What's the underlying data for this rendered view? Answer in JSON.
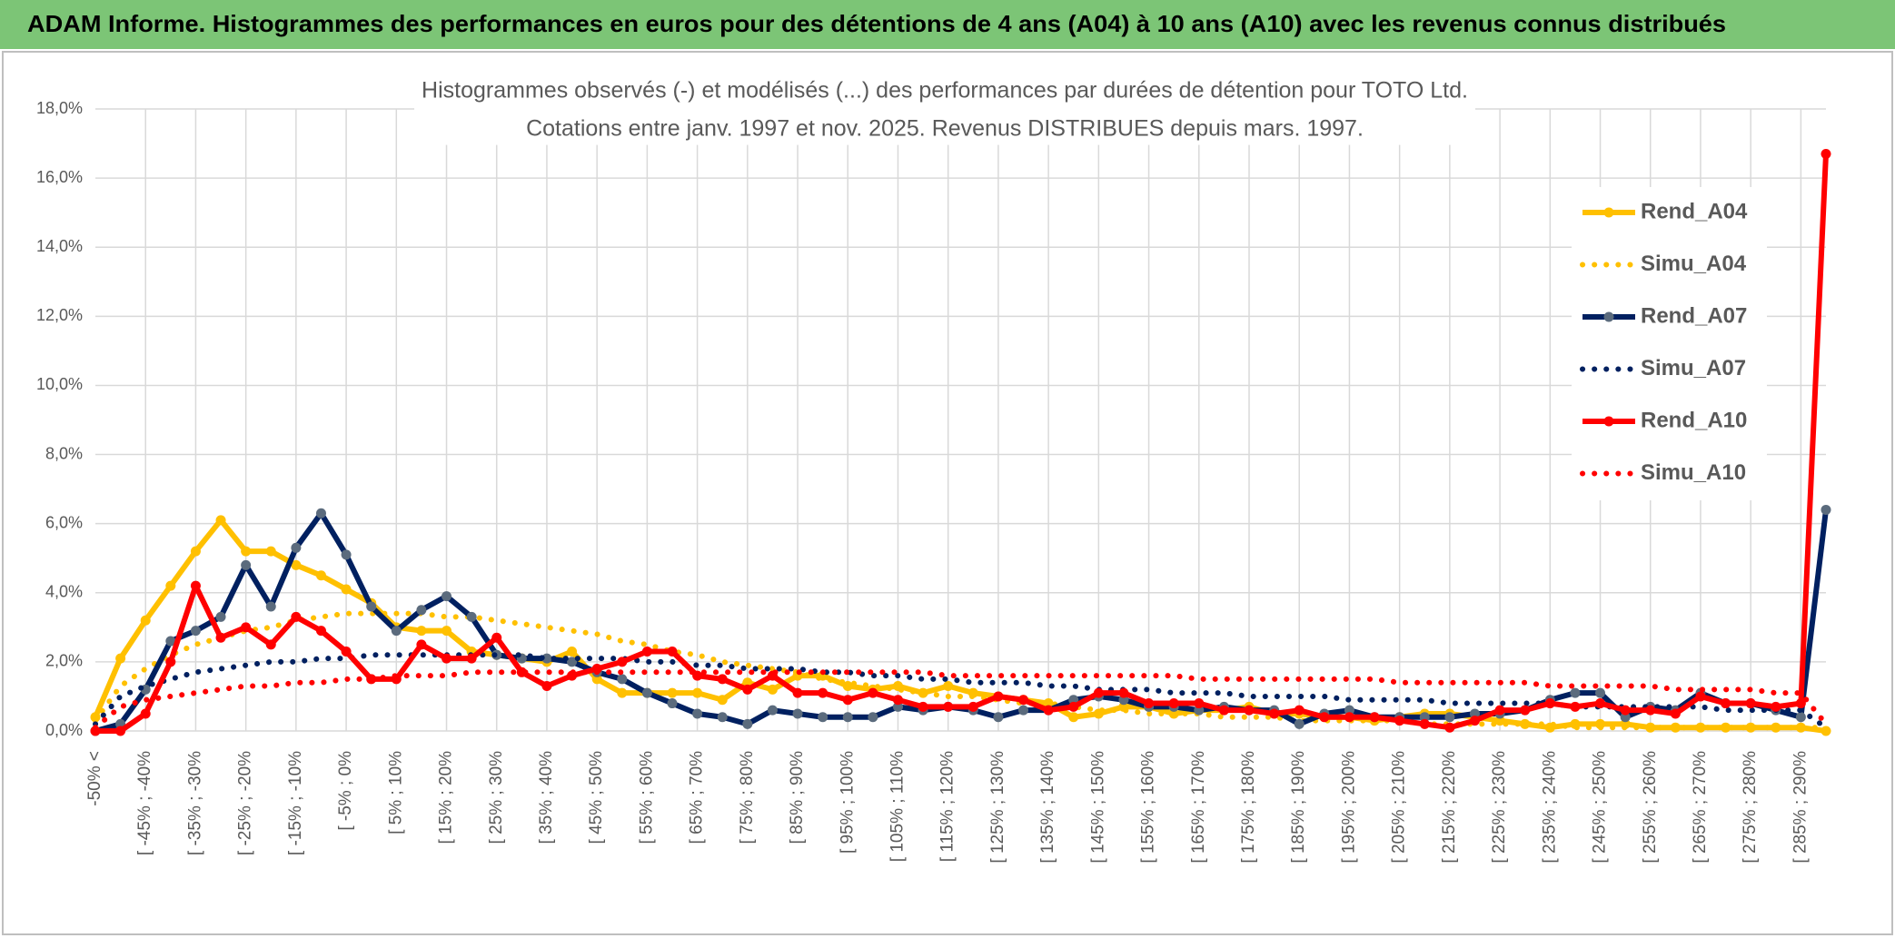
{
  "header": {
    "title": "ADAM Informe. Histogrammes des performances en euros pour des détentions de 4 ans (A04) à 10 ans (A10) avec les revenus connus distribués"
  },
  "chart_data": {
    "type": "line",
    "title": "Histogrammes observés (-) et modélisés (...) des performances par durées de détention pour TOTO Ltd.",
    "subtitle": "Cotations entre janv. 1997 et nov. 2025. Revenus DISTRIBUES depuis mars. 1997.",
    "categories": [
      "-50% <",
      null,
      "[ -45% ; -40%",
      null,
      "[ -35% ; -30%",
      null,
      "[ -25% ; -20%",
      null,
      "[ -15% ; -10%",
      null,
      "[ -5% ; 0%",
      null,
      "[ 5% ; 10%",
      null,
      "[ 15% ; 20%",
      null,
      "[ 25% ; 30%",
      null,
      "[ 35% ; 40%",
      null,
      "[ 45% ; 50%",
      null,
      "[ 55% ; 60%",
      null,
      "[ 65% ; 70%",
      null,
      "[ 75% ; 80%",
      null,
      "[ 85% ; 90%",
      null,
      "[ 95% ; 100%",
      null,
      "[ 105% ; 110%",
      null,
      "[ 115% ; 120%",
      null,
      "[ 125% ; 130%",
      null,
      "[ 135% ; 140%",
      null,
      "[ 145% ; 150%",
      null,
      "[ 155% ; 160%",
      null,
      "[ 165% ; 170%",
      null,
      "[ 175% ; 180%",
      null,
      "[ 185% ; 190%",
      null,
      "[ 195% ; 200%",
      null,
      "[ 205% ; 210%",
      null,
      "[ 215% ; 220%",
      null,
      "[ 225% ; 230%",
      null,
      "[ 235% ; 240%",
      null,
      "[ 245% ; 250%",
      null,
      "[ 255% ; 260%",
      null,
      "[ 265% ; 270%",
      null,
      "[ 275% ; 280%",
      null,
      "[ 285% ; 290%",
      null
    ],
    "series": [
      {
        "name": "Rend_A04",
        "color": "#ffc000",
        "dash": "solid",
        "marker": true,
        "values": [
          0.4,
          2.1,
          3.2,
          4.2,
          5.2,
          6.1,
          5.2,
          5.2,
          4.8,
          4.5,
          4.1,
          3.7,
          3.0,
          2.9,
          2.9,
          2.3,
          2.2,
          2.1,
          2.0,
          2.3,
          1.5,
          1.1,
          1.1,
          1.1,
          1.1,
          0.9,
          1.4,
          1.2,
          1.6,
          1.6,
          1.3,
          1.2,
          1.3,
          1.1,
          1.3,
          1.1,
          1.0,
          0.9,
          0.8,
          0.4,
          0.5,
          0.7,
          0.7,
          0.5,
          0.6,
          0.6,
          0.7,
          0.5,
          0.5,
          0.4,
          0.4,
          0.3,
          0.4,
          0.5,
          0.5,
          0.4,
          0.3,
          0.2,
          0.1,
          0.2,
          0.2,
          0.2,
          0.1,
          0.1,
          0.1,
          0.1,
          0.1,
          0.1,
          0.1,
          0.0
        ]
      },
      {
        "name": "Simu_A04",
        "color": "#ffc000",
        "dash": "dotted",
        "marker": false,
        "values": [
          0.3,
          1.3,
          1.8,
          2.2,
          2.5,
          2.7,
          2.9,
          3.0,
          3.2,
          3.3,
          3.4,
          3.4,
          3.4,
          3.4,
          3.3,
          3.3,
          3.2,
          3.1,
          3.0,
          2.9,
          2.8,
          2.6,
          2.5,
          2.3,
          2.2,
          2.0,
          1.9,
          1.8,
          1.7,
          1.5,
          1.4,
          1.3,
          1.2,
          1.1,
          1.0,
          1.0,
          0.9,
          0.8,
          0.8,
          0.7,
          0.6,
          0.6,
          0.5,
          0.5,
          0.5,
          0.4,
          0.4,
          0.4,
          0.3,
          0.3,
          0.3,
          0.3,
          0.3,
          0.2,
          0.2,
          0.2,
          0.2,
          0.2,
          0.2,
          0.1,
          0.1,
          0.1,
          0.1,
          0.1,
          0.1,
          0.1,
          0.1,
          0.1,
          0.1,
          0.1
        ]
      },
      {
        "name": "Rend_A07",
        "color": "#002060",
        "marker_color": "#5b6b7d",
        "dash": "solid",
        "marker": true,
        "values": [
          0.0,
          0.2,
          1.2,
          2.6,
          2.9,
          3.3,
          4.8,
          3.6,
          5.3,
          6.3,
          5.1,
          3.6,
          2.9,
          3.5,
          3.9,
          3.3,
          2.2,
          2.1,
          2.1,
          2.0,
          1.7,
          1.5,
          1.1,
          0.8,
          0.5,
          0.4,
          0.2,
          0.6,
          0.5,
          0.4,
          0.4,
          0.4,
          0.7,
          0.6,
          0.7,
          0.6,
          0.4,
          0.6,
          0.6,
          0.9,
          1.0,
          0.9,
          0.7,
          0.7,
          0.6,
          0.7,
          0.6,
          0.6,
          0.2,
          0.5,
          0.6,
          0.4,
          0.4,
          0.4,
          0.4,
          0.5,
          0.5,
          0.6,
          0.9,
          1.1,
          1.1,
          0.4,
          0.7,
          0.6,
          1.1,
          0.8,
          0.8,
          0.6,
          0.4,
          6.4
        ]
      },
      {
        "name": "Simu_A07",
        "color": "#002060",
        "dash": "dotted",
        "marker": false,
        "values": [
          0.2,
          1.0,
          1.3,
          1.5,
          1.7,
          1.8,
          1.9,
          2.0,
          2.0,
          2.1,
          2.1,
          2.2,
          2.2,
          2.2,
          2.2,
          2.2,
          2.2,
          2.2,
          2.1,
          2.1,
          2.1,
          2.1,
          2.0,
          2.0,
          1.9,
          1.9,
          1.8,
          1.8,
          1.8,
          1.7,
          1.7,
          1.6,
          1.6,
          1.5,
          1.5,
          1.4,
          1.4,
          1.4,
          1.3,
          1.3,
          1.2,
          1.2,
          1.2,
          1.1,
          1.1,
          1.1,
          1.0,
          1.0,
          1.0,
          1.0,
          0.9,
          0.9,
          0.9,
          0.9,
          0.8,
          0.8,
          0.8,
          0.8,
          0.8,
          0.7,
          0.7,
          0.7,
          0.7,
          0.7,
          0.7,
          0.6,
          0.6,
          0.6,
          0.6,
          0.1
        ]
      },
      {
        "name": "Rend_A10",
        "color": "#ff0000",
        "dash": "solid",
        "marker": true,
        "values": [
          0.0,
          0.0,
          0.5,
          2.0,
          4.2,
          2.7,
          3.0,
          2.5,
          3.3,
          2.9,
          2.3,
          1.5,
          1.5,
          2.5,
          2.1,
          2.1,
          2.7,
          1.7,
          1.3,
          1.6,
          1.8,
          2.0,
          2.3,
          2.3,
          1.6,
          1.5,
          1.2,
          1.6,
          1.1,
          1.1,
          0.9,
          1.1,
          0.9,
          0.7,
          0.7,
          0.7,
          1.0,
          0.9,
          0.6,
          0.7,
          1.1,
          1.1,
          0.8,
          0.8,
          0.8,
          0.6,
          0.6,
          0.5,
          0.6,
          0.4,
          0.4,
          0.4,
          0.3,
          0.2,
          0.1,
          0.3,
          0.6,
          0.6,
          0.8,
          0.7,
          0.8,
          0.6,
          0.6,
          0.5,
          1.0,
          0.8,
          0.8,
          0.7,
          0.8,
          16.7
        ]
      },
      {
        "name": "Simu_A10",
        "color": "#ff0000",
        "dash": "dotted",
        "marker": false,
        "values": [
          0.1,
          0.7,
          0.9,
          1.0,
          1.1,
          1.2,
          1.3,
          1.3,
          1.4,
          1.4,
          1.5,
          1.5,
          1.6,
          1.6,
          1.6,
          1.7,
          1.7,
          1.7,
          1.7,
          1.7,
          1.7,
          1.7,
          1.7,
          1.7,
          1.7,
          1.7,
          1.7,
          1.7,
          1.7,
          1.7,
          1.7,
          1.7,
          1.7,
          1.7,
          1.6,
          1.6,
          1.6,
          1.6,
          1.6,
          1.6,
          1.6,
          1.6,
          1.6,
          1.6,
          1.5,
          1.5,
          1.5,
          1.5,
          1.5,
          1.5,
          1.5,
          1.5,
          1.4,
          1.4,
          1.4,
          1.4,
          1.4,
          1.4,
          1.3,
          1.3,
          1.3,
          1.3,
          1.3,
          1.2,
          1.2,
          1.2,
          1.2,
          1.1,
          1.1,
          0.2
        ]
      }
    ],
    "ylim": [
      0,
      18
    ],
    "yticks": [
      {
        "value": 0,
        "label": "0,0%"
      },
      {
        "value": 2,
        "label": "2,0%"
      },
      {
        "value": 4,
        "label": "4,0%"
      },
      {
        "value": 6,
        "label": "6,0%"
      },
      {
        "value": 8,
        "label": "8,0%"
      },
      {
        "value": 10,
        "label": "10,0%"
      },
      {
        "value": 12,
        "label": "12,0%"
      },
      {
        "value": 14,
        "label": "14,0%"
      },
      {
        "value": 16,
        "label": "16,0%"
      },
      {
        "value": 18,
        "label": "18,0%"
      }
    ],
    "grid": true,
    "legend": "right"
  }
}
